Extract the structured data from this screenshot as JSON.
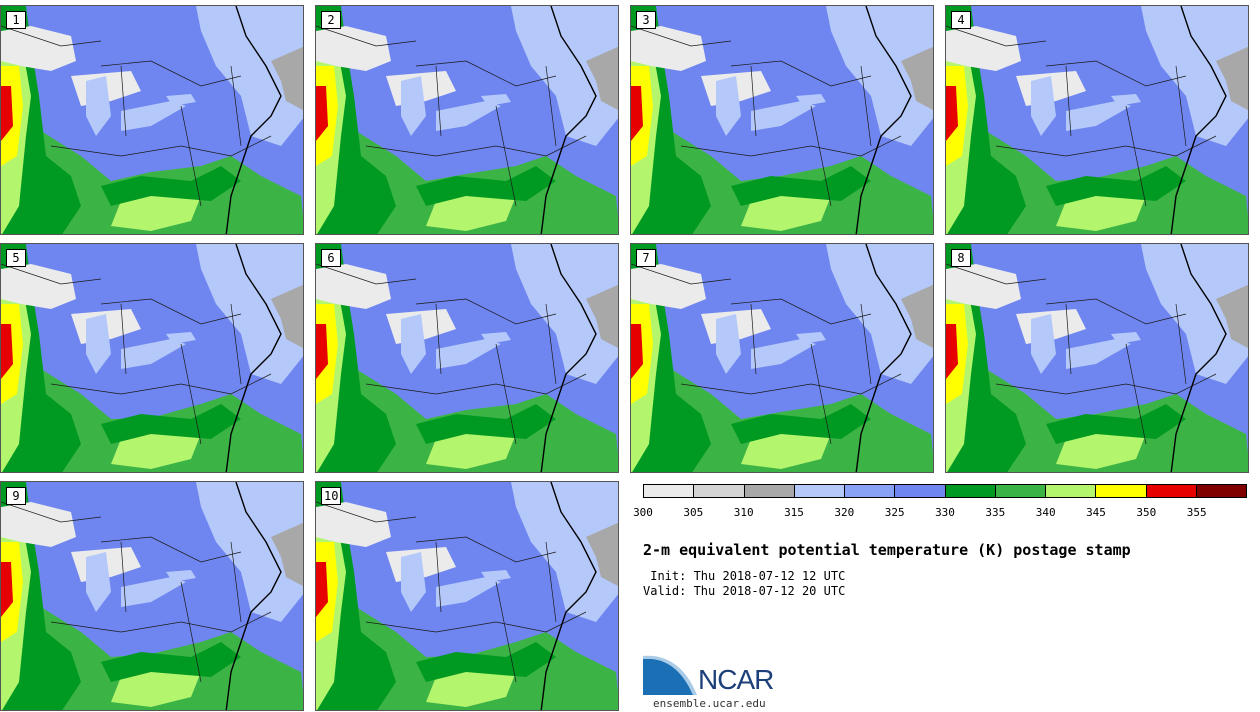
{
  "panels": [
    {
      "label": "1"
    },
    {
      "label": "2"
    },
    {
      "label": "3"
    },
    {
      "label": "4"
    },
    {
      "label": "5"
    },
    {
      "label": "6"
    },
    {
      "label": "7"
    },
    {
      "label": "8"
    },
    {
      "label": "9"
    },
    {
      "label": "10"
    }
  ],
  "colorbar": {
    "colors": [
      "#ebebeb",
      "#d4d4d4",
      "#a8a8a8",
      "#b4c8fa",
      "#8aa2f5",
      "#6f86f0",
      "#009a22",
      "#3cb445",
      "#b4f56e",
      "#ffff00",
      "#e60000",
      "#800000"
    ],
    "ticks": [
      "300",
      "305",
      "310",
      "315",
      "320",
      "325",
      "330",
      "335",
      "340",
      "345",
      "350",
      "355"
    ]
  },
  "title": "2-m equivalent potential temperature (K) postage stamp",
  "init_line": " Init: Thu 2018-07-12 12 UTC",
  "valid_line": "Valid: Thu 2018-07-12 20 UTC",
  "logo": {
    "text": "NCAR",
    "url": "ensemble.ucar.edu"
  }
}
